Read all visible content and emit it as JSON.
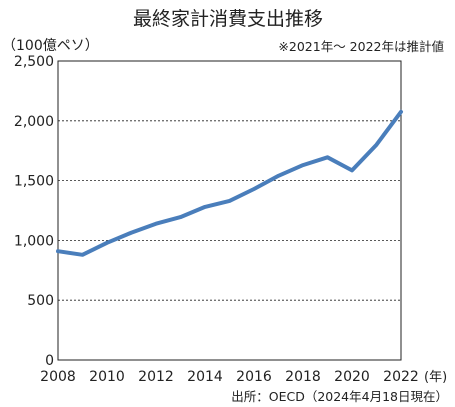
{
  "chart_data": {
    "type": "line",
    "title": "最終家計消費支出推移",
    "unit_label": "（100億ペソ）",
    "note": "※2021年〜 2022年は推計値",
    "x_unit_label": "(年)",
    "source": "出所：OECD（2024年4月18日現在）",
    "x": [
      2008,
      2009,
      2010,
      2011,
      2012,
      2013,
      2014,
      2015,
      2016,
      2017,
      2018,
      2019,
      2020,
      2021,
      2022
    ],
    "series": [
      {
        "values": [
          910,
          880,
          980,
          1065,
          1140,
          1195,
          1280,
          1330,
          1430,
          1540,
          1630,
          1695,
          1585,
          1800,
          2075
        ]
      }
    ],
    "xlim": [
      2008,
      2022
    ],
    "ylim": [
      0,
      2500
    ],
    "x_ticks": [
      2008,
      2010,
      2012,
      2014,
      2016,
      2018,
      2020,
      2022
    ],
    "x_tick_labels": [
      "2008",
      "2010",
      "2012",
      "2014",
      "2016",
      "2018",
      "2020",
      "2022"
    ],
    "y_ticks": [
      0,
      500,
      1000,
      1500,
      2000,
      2500
    ],
    "y_tick_labels": [
      "0",
      "500",
      "1,000",
      "1,500",
      "2,000",
      "2,500"
    ],
    "grid": "horizontal-dashed",
    "line_color": "#4a7ebb"
  }
}
